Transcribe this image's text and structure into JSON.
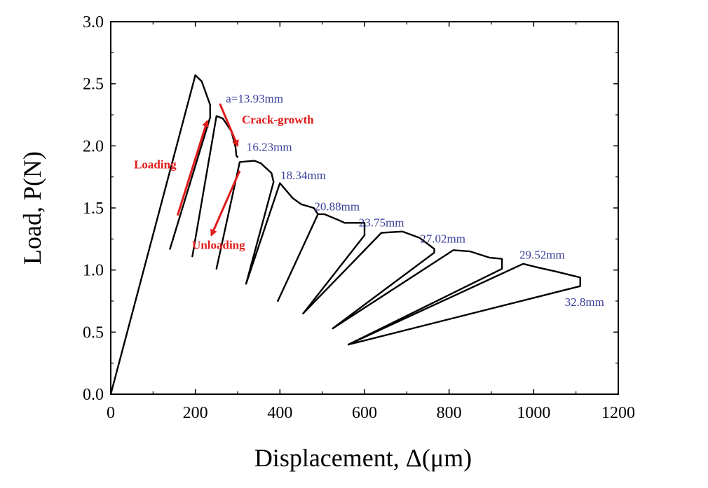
{
  "chart_data": {
    "type": "line",
    "title": "",
    "xlabel": "Displacement, Δ(μm)",
    "ylabel": "Load, P(N)",
    "xlim": [
      0,
      1200
    ],
    "ylim": [
      0,
      3.0
    ],
    "xticks": [
      "0",
      "200",
      "400",
      "600",
      "800",
      "1000",
      "1200"
    ],
    "yticks": [
      "0.0",
      "0.5",
      "1.0",
      "1.5",
      "2.0",
      "2.5",
      "3.0"
    ],
    "grid": false,
    "colors": {
      "curve": "#000000",
      "crack_length_labels": "#3b3f9c",
      "arrows": "#e01b1b"
    },
    "series": [
      {
        "values": [
          [
            0,
            0
          ],
          [
            200,
            2.57
          ],
          [
            215,
            2.52
          ],
          [
            235,
            2.33
          ],
          [
            235,
            2.23
          ],
          [
            140,
            1.17
          ]
        ]
      },
      {
        "values": [
          [
            193,
            1.11
          ],
          [
            250,
            2.24
          ],
          [
            265,
            2.22
          ],
          [
            285,
            2.12
          ],
          [
            295,
            1.99
          ],
          [
            297,
            1.92
          ],
          [
            300,
            1.91
          ]
        ]
      },
      {
        "values": [
          [
            250,
            1.01
          ],
          [
            305,
            1.87
          ],
          [
            340,
            1.88
          ],
          [
            355,
            1.86
          ],
          [
            380,
            1.78
          ],
          [
            385,
            1.71
          ],
          [
            320,
            0.89
          ]
        ]
      },
      {
        "values": [
          [
            320,
            0.89
          ],
          [
            400,
            1.7
          ],
          [
            430,
            1.58
          ],
          [
            450,
            1.53
          ],
          [
            480,
            1.5
          ],
          [
            490,
            1.45
          ]
        ]
      },
      {
        "values": [
          [
            395,
            0.75
          ],
          [
            490,
            1.45
          ],
          [
            505,
            1.45
          ],
          [
            540,
            1.4
          ],
          [
            553,
            1.38
          ],
          [
            600,
            1.38
          ],
          [
            600,
            1.28
          ],
          [
            455,
            0.65
          ]
        ]
      },
      {
        "values": [
          [
            455,
            0.65
          ],
          [
            640,
            1.3
          ],
          [
            690,
            1.31
          ],
          [
            730,
            1.26
          ],
          [
            765,
            1.17
          ],
          [
            765,
            1.14
          ],
          [
            525,
            0.53
          ]
        ]
      },
      {
        "values": [
          [
            525,
            0.53
          ],
          [
            810,
            1.16
          ],
          [
            850,
            1.15
          ],
          [
            895,
            1.1
          ],
          [
            925,
            1.09
          ],
          [
            925,
            1.01
          ],
          [
            562,
            0.4
          ]
        ]
      },
      {
        "values": [
          [
            562,
            0.4
          ],
          [
            975,
            1.05
          ],
          [
            1010,
            1.02
          ],
          [
            1050,
            0.99
          ],
          [
            1110,
            0.94
          ],
          [
            1110,
            0.87
          ],
          [
            562,
            0.4
          ]
        ]
      }
    ],
    "annotations": {
      "crack_lengths": [
        {
          "text": "a=13.93mm",
          "x": 340,
          "y": 2.35
        },
        {
          "text": "16.23mm",
          "x": 375,
          "y": 1.96
        },
        {
          "text": "18.34mm",
          "x": 455,
          "y": 1.73
        },
        {
          "text": "20.88mm",
          "x": 535,
          "y": 1.48
        },
        {
          "text": "23.75mm",
          "x": 640,
          "y": 1.35
        },
        {
          "text": "27.02mm",
          "x": 785,
          "y": 1.22
        },
        {
          "text": "29.52mm",
          "x": 1020,
          "y": 1.09
        },
        {
          "text": "32.8mm",
          "x": 1120,
          "y": 0.71
        }
      ],
      "labels": [
        {
          "text": "Loading",
          "x": 105,
          "y": 1.82
        },
        {
          "text": "Crack-growth",
          "x": 395,
          "y": 2.18
        },
        {
          "text": "Unloading",
          "x": 255,
          "y": 1.17
        }
      ],
      "arrows": [
        {
          "name": "loading-arrow",
          "from": [
            158,
            1.44
          ],
          "to": [
            228,
            2.2
          ]
        },
        {
          "name": "crack-growth-arrow",
          "from": [
            258,
            2.34
          ],
          "to": [
            300,
            2.0
          ]
        },
        {
          "name": "unloading-arrow",
          "from": [
            305,
            1.8
          ],
          "to": [
            238,
            1.28
          ]
        }
      ]
    }
  }
}
